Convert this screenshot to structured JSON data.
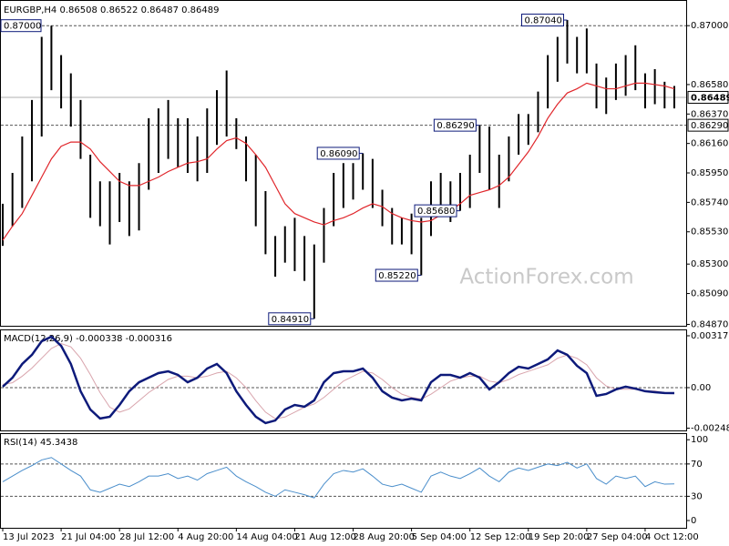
{
  "chart_data": [
    {
      "type": "range",
      "title": "EURGBP,H4",
      "quote": [
        0.86508,
        0.86522,
        0.86487,
        0.86489
      ],
      "high": [
        0.8573,
        0.8595,
        0.8621,
        0.8647,
        0.8692,
        0.87,
        0.8679,
        0.8666,
        0.8647,
        0.8608,
        0.8589,
        0.8589,
        0.8595,
        0.8589,
        0.8602,
        0.8634,
        0.8641,
        0.8647,
        0.8634,
        0.8634,
        0.8621,
        0.8641,
        0.8654,
        0.8668,
        0.8634,
        0.8621,
        0.8608,
        0.8582,
        0.855,
        0.8557,
        0.8563,
        0.855,
        0.8544,
        0.857,
        0.8595,
        0.8602,
        0.8602,
        0.8609,
        0.8605,
        0.8583,
        0.857,
        0.8563,
        0.8566,
        0.8563,
        0.8589,
        0.8595,
        0.8589,
        0.8595,
        0.8608,
        0.8629,
        0.8628,
        0.8608,
        0.8621,
        0.8637,
        0.8637,
        0.8653,
        0.8679,
        0.8692,
        0.8704,
        0.8692,
        0.8698,
        0.8673,
        0.8663,
        0.8673,
        0.8679,
        0.8686,
        0.8666,
        0.8669,
        0.866,
        0.8657
      ],
      "low": [
        0.8543,
        0.8557,
        0.857,
        0.8589,
        0.8621,
        0.8654,
        0.8641,
        0.8628,
        0.8605,
        0.8563,
        0.8557,
        0.8544,
        0.856,
        0.855,
        0.8554,
        0.8583,
        0.8595,
        0.8605,
        0.8599,
        0.8595,
        0.8589,
        0.8595,
        0.8615,
        0.8621,
        0.8612,
        0.8589,
        0.8557,
        0.8537,
        0.8521,
        0.8531,
        0.8525,
        0.8518,
        0.8491,
        0.8531,
        0.8557,
        0.857,
        0.8576,
        0.8583,
        0.857,
        0.8557,
        0.8544,
        0.8544,
        0.8537,
        0.8522,
        0.855,
        0.8566,
        0.856,
        0.8568,
        0.857,
        0.8595,
        0.8583,
        0.857,
        0.8589,
        0.8608,
        0.8615,
        0.8624,
        0.8641,
        0.866,
        0.8673,
        0.8666,
        0.8666,
        0.8641,
        0.8637,
        0.8647,
        0.865,
        0.8654,
        0.8641,
        0.8644,
        0.8641,
        0.8641
      ],
      "color": "#000000",
      "ma_values": [
        0.8547,
        0.8557,
        0.8566,
        0.8579,
        0.8592,
        0.8605,
        0.8614,
        0.8617,
        0.8617,
        0.8612,
        0.8603,
        0.8596,
        0.8589,
        0.8586,
        0.8586,
        0.8589,
        0.8592,
        0.8596,
        0.8599,
        0.8602,
        0.8603,
        0.8605,
        0.8612,
        0.8618,
        0.862,
        0.8616,
        0.8608,
        0.8599,
        0.8586,
        0.8573,
        0.8566,
        0.8563,
        0.856,
        0.8558,
        0.8561,
        0.8563,
        0.8566,
        0.857,
        0.8573,
        0.8571,
        0.8566,
        0.8563,
        0.8561,
        0.856,
        0.8561,
        0.8565,
        0.8568,
        0.8573,
        0.8579,
        0.8581,
        0.8583,
        0.8586,
        0.8592,
        0.8601,
        0.861,
        0.8621,
        0.8634,
        0.8644,
        0.8652,
        0.8655,
        0.8659,
        0.8657,
        0.8655,
        0.8655,
        0.8657,
        0.8659,
        0.8659,
        0.8658,
        0.8657,
        0.8655
      ],
      "ma_color": "#e0262b",
      "ylim": [
        0.8486,
        0.8717
      ],
      "yticks": [
        {
          "value": 0.87,
          "label": "0.87000"
        },
        {
          "value": 0.8658,
          "label": "0.86580"
        },
        {
          "value": 0.8637,
          "label": "0.86370"
        },
        {
          "value": 0.8616,
          "label": "0.86160"
        },
        {
          "value": 0.8595,
          "label": "0.85950"
        },
        {
          "value": 0.8574,
          "label": "0.85740"
        },
        {
          "value": 0.8553,
          "label": "0.85530"
        },
        {
          "value": 0.853,
          "label": "0.85300"
        },
        {
          "value": 0.8509,
          "label": "0.85090"
        },
        {
          "value": 0.8487,
          "label": "0.84870"
        }
      ],
      "levels": [
        {
          "value": 0.87,
          "label": "0.87000",
          "style": "dashed",
          "label_side": "left"
        },
        {
          "value": 0.8629,
          "label": "0.86290",
          "style": "dashed",
          "label_side": "right"
        },
        {
          "value": 0.86489,
          "style": "solid",
          "label_side": "right"
        }
      ],
      "annotations": [
        {
          "value": 0.8704,
          "label": "0.87040"
        },
        {
          "value": 0.8629,
          "label": "0.86290"
        },
        {
          "value": 0.8609,
          "label": "0.86090"
        },
        {
          "value": 0.8568,
          "label": "0.85680"
        },
        {
          "value": 0.8522,
          "label": "0.85220"
        },
        {
          "value": 0.8491,
          "label": "0.84910"
        }
      ],
      "watermark": "ActionForex.com"
    },
    {
      "type": "line",
      "title": "MACD(12,26,9)",
      "current": -0.000338,
      "signal_current": -0.000316,
      "values": [
        6e-05,
        0.00061,
        0.00145,
        0.00201,
        0.00284,
        0.00312,
        0.00256,
        0.00145,
        -0.00022,
        -0.00134,
        -0.00189,
        -0.00178,
        -0.00106,
        -0.00022,
        0.00033,
        0.00061,
        0.00089,
        0.001,
        0.00078,
        0.00033,
        0.00061,
        0.00117,
        0.00145,
        0.00089,
        -0.00022,
        -0.00106,
        -0.00178,
        -0.00217,
        -0.00201,
        -0.00134,
        -0.00106,
        -0.00117,
        -0.00078,
        0.00033,
        0.00089,
        0.001,
        0.001,
        0.00117,
        0.00061,
        -0.00022,
        -0.00061,
        -0.00078,
        -0.00067,
        -0.00078,
        0.00033,
        0.00078,
        0.00078,
        0.00061,
        0.00089,
        0.00061,
        -0.00011,
        0.00033,
        0.00089,
        0.00128,
        0.00117,
        0.00145,
        0.00173,
        0.00228,
        0.00201,
        0.00134,
        0.00089,
        -0.0005,
        -0.00039,
        -0.00011,
        6e-05,
        -6e-05,
        -0.00022,
        -0.00028,
        -0.00033,
        -0.000338
      ],
      "color": "#0d1a7a",
      "signal": [
        0.0002,
        0.0003,
        0.0007,
        0.0012,
        0.0018,
        0.0024,
        0.0027,
        0.0025,
        0.0018,
        0.0008,
        -0.0003,
        -0.0012,
        -0.0015,
        -0.0013,
        -0.0008,
        -0.0003,
        0.0001,
        0.0005,
        0.0007,
        0.0007,
        0.0006,
        0.0007,
        0.0009,
        0.001,
        0.0006,
        0,
        -0.0008,
        -0.0015,
        -0.0019,
        -0.0018,
        -0.0015,
        -0.0012,
        -0.001,
        -0.0006,
        -0.0001,
        0.0004,
        0.0007,
        0.001,
        0.0009,
        0.0005,
        0,
        -0.0004,
        -0.0006,
        -0.0007,
        -0.0004,
        0,
        0.0004,
        0.0006,
        0.0007,
        0.0007,
        0.0004,
        0.0003,
        0.0005,
        0.0008,
        0.001,
        0.0012,
        0.0014,
        0.0018,
        0.002,
        0.0018,
        0.0014,
        0.0006,
        0.0001,
        -0.0001,
        -0.0001,
        -0.0001,
        -0.0002,
        -0.0002,
        -0.0003,
        -0.000316
      ],
      "signal_color": "#d9a5ad",
      "ylim": [
        -0.00262,
        0.00351
      ],
      "yticks": [
        0.003177,
        {
          "value": 0,
          "label": "0.00"
        },
        -0.002482
      ],
      "levels": [
        0
      ]
    },
    {
      "type": "line",
      "title": "RSI(14)",
      "current": 45.3438,
      "values": [
        48,
        55,
        62,
        68,
        75,
        78,
        70,
        62,
        55,
        38,
        35,
        40,
        45,
        42,
        48,
        55,
        55,
        58,
        52,
        55,
        50,
        58,
        62,
        66,
        55,
        48,
        42,
        35,
        30,
        38,
        35,
        32,
        28,
        45,
        58,
        62,
        60,
        64,
        55,
        45,
        42,
        45,
        40,
        35,
        55,
        60,
        55,
        52,
        58,
        65,
        55,
        48,
        60,
        65,
        62,
        66,
        70,
        68,
        72,
        65,
        70,
        52,
        45,
        55,
        52,
        55,
        42,
        48,
        45,
        45.3438
      ],
      "color": "#4a8ecb",
      "ylim": [
        -9,
        107
      ],
      "yticks": [
        100,
        70,
        30,
        0
      ],
      "levels": [
        70,
        30
      ],
      "categories": [
        "13 Jul 2023",
        null,
        null,
        null,
        null,
        null,
        "21 Jul 04:00",
        null,
        null,
        null,
        null,
        null,
        "28 Jul 12:00",
        null,
        null,
        null,
        null,
        null,
        "4 Aug 20:00",
        null,
        null,
        null,
        null,
        null,
        "14 Aug 04:00",
        null,
        null,
        null,
        null,
        null,
        "21 Aug 12:00",
        null,
        null,
        null,
        null,
        null,
        "28 Aug 20:00",
        null,
        null,
        null,
        null,
        null,
        "5 Sep 04:00",
        null,
        null,
        null,
        null,
        null,
        "12 Sep 12:00",
        null,
        null,
        null,
        null,
        null,
        "19 Sep 20:00",
        null,
        null,
        null,
        null,
        null,
        "27 Sep 04:00",
        null,
        null,
        null,
        null,
        null,
        "4 Oct 12:00",
        null,
        null,
        null
      ]
    }
  ]
}
